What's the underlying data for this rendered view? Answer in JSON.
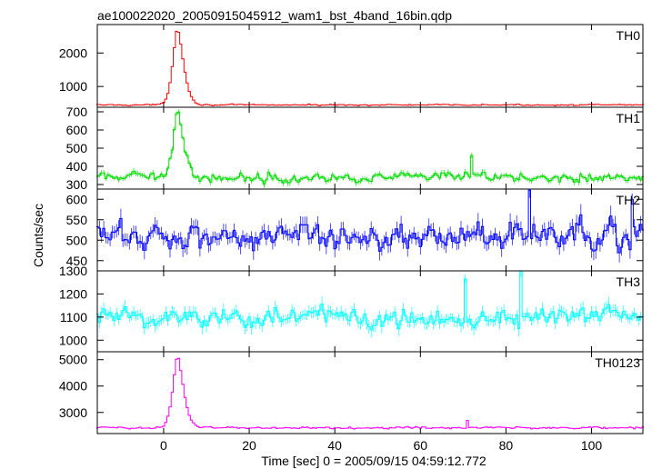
{
  "chart_data": {
    "title": "ae100022020_20050915045912_wam1_bst_4band_16bin.qdp",
    "type": "line",
    "xlabel": "Time [sec] 0 = 2005/09/15 04:59:12.772",
    "ylabel": "Counts/sec",
    "xlim": [
      -15.5,
      112
    ],
    "x_ticks": [
      0,
      20,
      40,
      60,
      80,
      100
    ],
    "bin_seconds": 0.5,
    "panels": [
      {
        "name": "TH0",
        "color": "#ff0000",
        "ylim": [
          380,
          2850
        ],
        "y_ticks": [
          1000,
          2000
        ],
        "baseline": 450,
        "noise": 22,
        "peak": {
          "x": 3.2,
          "value": 2750,
          "rise": 1.2,
          "decay": 1.6
        },
        "max_points": []
      },
      {
        "name": "TH1",
        "color": "#00dd00",
        "ylim": [
          275,
          725
        ],
        "y_ticks": [
          300,
          400,
          500,
          600,
          700
        ],
        "baseline": 340,
        "noise": 30,
        "peak": {
          "x": 3.2,
          "value": 710,
          "rise": 1.2,
          "decay": 1.5
        },
        "max_points": [
          {
            "x": 72,
            "value": 460
          }
        ]
      },
      {
        "name": "TH2",
        "color": "#0000ff",
        "ylim": [
          425,
          625
        ],
        "y_ticks": [
          450,
          500,
          550,
          600
        ],
        "baseline": 510,
        "noise": 38,
        "peak": null,
        "max_points": [
          {
            "x": 85.5,
            "value": 622
          },
          {
            "x": 109.5,
            "value": 600
          }
        ]
      },
      {
        "name": "TH3",
        "color": "#00ffff",
        "ylim": [
          950,
          1300
        ],
        "y_ticks": [
          1000,
          1100,
          1200,
          1300
        ],
        "baseline": 1100,
        "noise": 55,
        "peak": null,
        "max_points": [
          {
            "x": 83.5,
            "value": 1300
          },
          {
            "x": 70.5,
            "value": 1265
          }
        ]
      },
      {
        "name": "TH0123",
        "color": "#ff00ff",
        "ylim": [
          2200,
          5300
        ],
        "y_ticks": [
          3000,
          4000,
          5000
        ],
        "baseline": 2420,
        "noise": 45,
        "peak": {
          "x": 3.2,
          "value": 5150,
          "rise": 1.2,
          "decay": 1.6
        },
        "max_points": [
          {
            "x": 71,
            "value": 2700
          }
        ]
      }
    ]
  }
}
